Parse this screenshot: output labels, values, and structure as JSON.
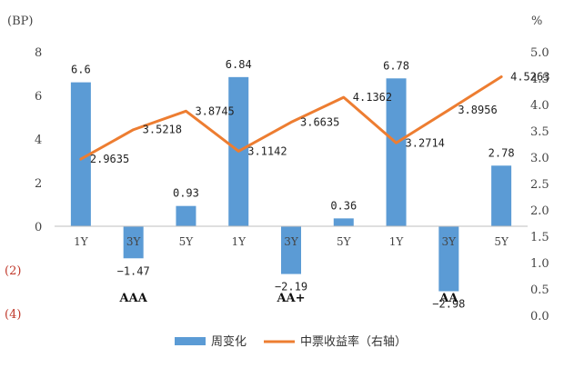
{
  "chart_data": {
    "type": "bar",
    "title": "",
    "left_unit": "(BP)",
    "right_unit": "%",
    "categories": [
      "1Y",
      "3Y",
      "5Y",
      "1Y",
      "3Y",
      "5Y",
      "1Y",
      "3Y",
      "5Y"
    ],
    "groups": [
      "AAA",
      "AA+",
      "AA"
    ],
    "left_ticks": [
      "8",
      "6",
      "4",
      "2",
      "0",
      "(2)",
      "(4)"
    ],
    "right_ticks": [
      "5.0",
      "4.5",
      "4.0",
      "3.5",
      "3.0",
      "2.5",
      "2.0",
      "1.5",
      "1.0",
      "0.5",
      "0.0"
    ],
    "ylim_left": [
      -4,
      8
    ],
    "ylim_right": [
      0,
      5
    ],
    "series": [
      {
        "name": "周变化",
        "type": "bar",
        "axis": "left",
        "color": "#5b9bd5",
        "values": [
          6.6,
          -1.47,
          0.93,
          6.84,
          -2.19,
          0.36,
          6.78,
          -2.98,
          2.78
        ],
        "labels": [
          "6.6",
          "-1.47",
          "0.93",
          "6.84",
          "-2.19",
          "0.36",
          "6.78",
          "-2.98",
          "2.78"
        ]
      },
      {
        "name": "中票收益率（右轴）",
        "type": "line",
        "axis": "right",
        "color": "#ed7d31",
        "values": [
          2.9635,
          3.5218,
          3.8745,
          3.1142,
          3.6635,
          4.1362,
          3.2714,
          3.8956,
          4.5263
        ],
        "labels": [
          "2.9635",
          "3.5218",
          "3.8745",
          "3.1142",
          "3.6635",
          "4.1362",
          "3.2714",
          "3.8956",
          "4.5263"
        ]
      }
    ],
    "legend": {
      "placement": "bottom"
    },
    "grid": false
  }
}
